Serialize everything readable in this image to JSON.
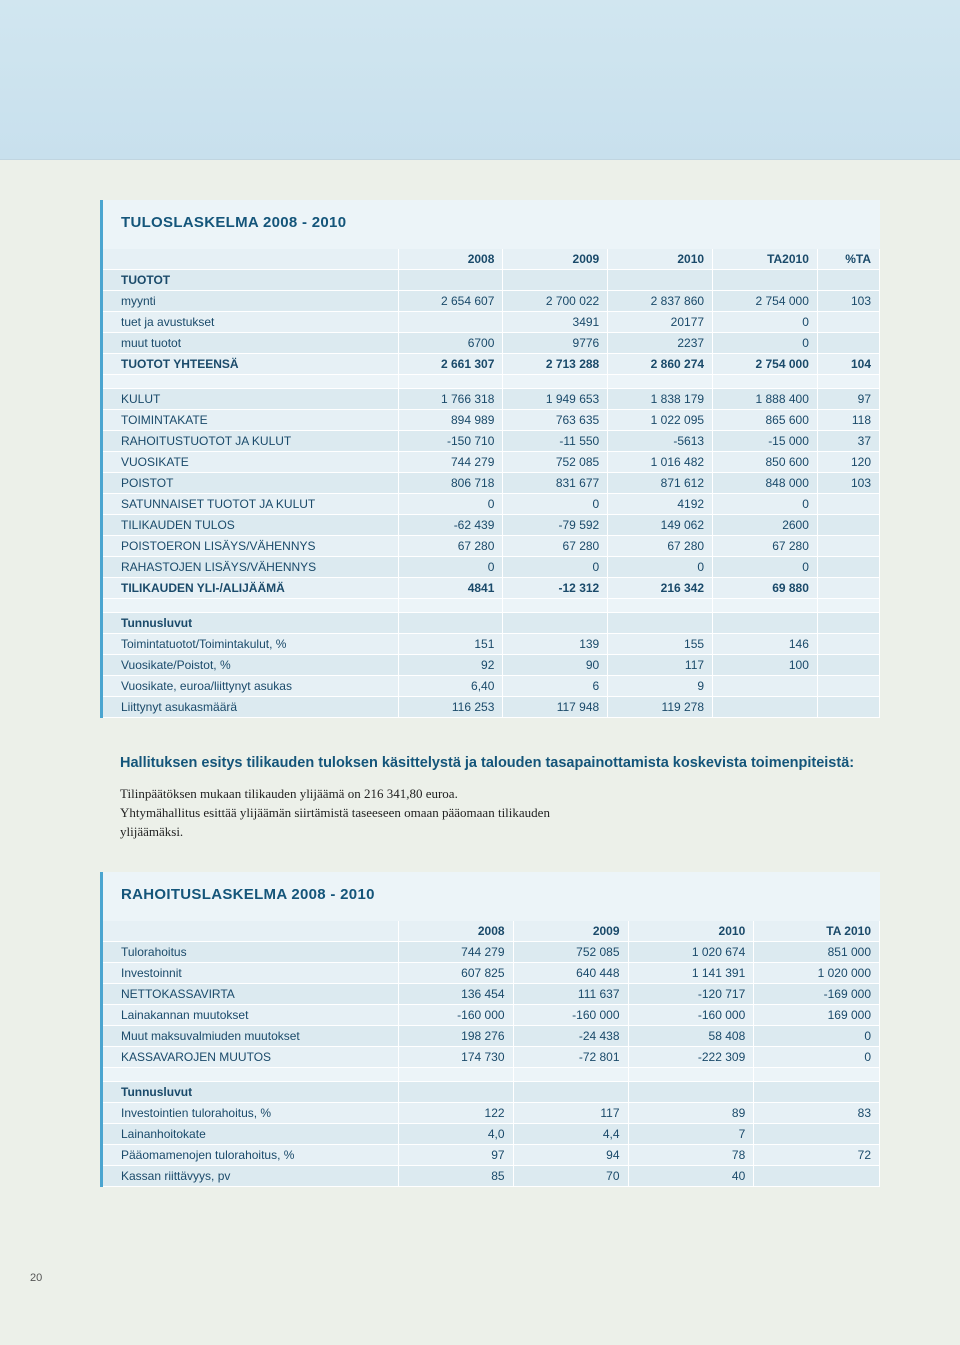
{
  "page_number": "20",
  "table1": {
    "title": "TULOSLASKELMA 2008 - 2010",
    "columns": [
      "",
      "2008",
      "2009",
      "2010",
      "TA2010",
      "%TA"
    ],
    "rows": [
      {
        "type": "section",
        "cells": [
          "TUOTOT",
          "",
          "",
          "",
          "",
          ""
        ]
      },
      {
        "type": "a",
        "cells": [
          "myynti",
          "2 654 607",
          "2 700 022",
          "2 837 860",
          "2 754 000",
          "103"
        ]
      },
      {
        "type": "b",
        "cells": [
          "tuet ja avustukset",
          "",
          "3491",
          "20177",
          "0",
          ""
        ]
      },
      {
        "type": "a",
        "cells": [
          "muut tuotot",
          "6700",
          "9776",
          "2237",
          "0",
          ""
        ]
      },
      {
        "type": "b bold",
        "cells": [
          "TUOTOT YHTEENSÄ",
          "2 661 307",
          "2 713 288",
          "2 860 274",
          "2 754 000",
          "104"
        ]
      },
      {
        "type": "blank",
        "cells": [
          "",
          "",
          "",
          "",
          "",
          ""
        ]
      },
      {
        "type": "a",
        "cells": [
          "KULUT",
          "1 766 318",
          "1 949 653",
          "1 838 179",
          "1 888 400",
          "97"
        ]
      },
      {
        "type": "b",
        "cells": [
          "TOIMINTAKATE",
          "894 989",
          "763 635",
          "1 022 095",
          "865 600",
          "118"
        ]
      },
      {
        "type": "a",
        "cells": [
          "RAHOITUSTUOTOT JA KULUT",
          "-150 710",
          "-11 550",
          "-5613",
          "-15 000",
          "37"
        ]
      },
      {
        "type": "b",
        "cells": [
          "VUOSIKATE",
          "744 279",
          "752 085",
          "1 016 482",
          "850 600",
          "120"
        ]
      },
      {
        "type": "a",
        "cells": [
          "POISTOT",
          "806 718",
          "831 677",
          "871 612",
          "848 000",
          "103"
        ]
      },
      {
        "type": "b",
        "cells": [
          "SATUNNAISET TUOTOT JA KULUT",
          "0",
          "0",
          "4192",
          "0",
          ""
        ]
      },
      {
        "type": "a",
        "cells": [
          "TILIKAUDEN TULOS",
          "-62 439",
          "-79 592",
          "149 062",
          "2600",
          ""
        ]
      },
      {
        "type": "b",
        "cells": [
          "POISTOERON LISÄYS/VÄHENNYS",
          "67 280",
          "67 280",
          "67 280",
          "67 280",
          ""
        ]
      },
      {
        "type": "a",
        "cells": [
          "RAHASTOJEN LISÄYS/VÄHENNYS",
          "0",
          "0",
          "0",
          "0",
          ""
        ]
      },
      {
        "type": "b bold",
        "cells": [
          "TILIKAUDEN YLI-/ALIJÄÄMÄ",
          "4841",
          "-12 312",
          "216 342",
          "69 880",
          ""
        ]
      },
      {
        "type": "blank",
        "cells": [
          "",
          "",
          "",
          "",
          "",
          ""
        ]
      },
      {
        "type": "section",
        "cells": [
          "Tunnusluvut",
          "",
          "",
          "",
          "",
          ""
        ]
      },
      {
        "type": "b",
        "cells": [
          "Toimintatuotot/Toimintakulut, %",
          "151",
          "139",
          "155",
          "146",
          ""
        ]
      },
      {
        "type": "a",
        "cells": [
          "Vuosikate/Poistot, %",
          "92",
          "90",
          "117",
          "100",
          ""
        ]
      },
      {
        "type": "b",
        "cells": [
          "Vuosikate, euroa/liittynyt asukas",
          "6,40",
          "6",
          "9",
          "",
          ""
        ]
      },
      {
        "type": "a",
        "cells": [
          "Liittynyt asukasmäärä",
          "116 253",
          "117 948",
          "119 278",
          "",
          ""
        ]
      }
    ]
  },
  "prose": {
    "heading": "Hallituksen esitys tilikauden tuloksen käsittelystä ja talouden tasapainottamista koskevista toimenpiteistä:",
    "p1": "Tilinpäätöksen mukaan tilikauden ylijäämä on 216 341,80 euroa.",
    "p2": "Yhtymähallitus esittää ylijäämän siirtämistä taseeseen omaan pääomaan tilikauden ylijäämäksi."
  },
  "table2": {
    "title": "RAHOITUSLASKELMA 2008 - 2010",
    "columns": [
      "",
      "2008",
      "2009",
      "2010",
      "TA 2010"
    ],
    "rows": [
      {
        "type": "a",
        "cells": [
          "Tulorahoitus",
          "744 279",
          "752 085",
          "1 020 674",
          "851 000"
        ]
      },
      {
        "type": "b",
        "cells": [
          "Investoinnit",
          "607 825",
          "640 448",
          "1 141 391",
          "1 020 000"
        ]
      },
      {
        "type": "a",
        "cells": [
          "NETTOKASSAVIRTA",
          "136 454",
          "111 637",
          "-120 717",
          "-169 000"
        ]
      },
      {
        "type": "b",
        "cells": [
          "Lainakannan muutokset",
          "-160 000",
          "-160 000",
          "-160 000",
          "169 000"
        ]
      },
      {
        "type": "a",
        "cells": [
          "Muut maksuvalmiuden muutokset",
          "198 276",
          "-24 438",
          "58 408",
          "0"
        ]
      },
      {
        "type": "b",
        "cells": [
          "KASSAVAROJEN MUUTOS",
          "174 730",
          "-72 801",
          "-222 309",
          "0"
        ]
      },
      {
        "type": "blank",
        "cells": [
          "",
          "",
          "",
          "",
          ""
        ]
      },
      {
        "type": "section",
        "cells": [
          "Tunnusluvut",
          "",
          "",
          "",
          ""
        ]
      },
      {
        "type": "b",
        "cells": [
          "Investointien tulorahoitus, %",
          "122",
          "117",
          "89",
          "83"
        ]
      },
      {
        "type": "a",
        "cells": [
          "Lainanhoitokate",
          "4,0",
          "4,4",
          "7",
          ""
        ]
      },
      {
        "type": "b",
        "cells": [
          "Pääomamenojen tulorahoitus, %",
          "97",
          "94",
          "78",
          "72"
        ]
      },
      {
        "type": "a",
        "cells": [
          "Kassan riittävyys, pv",
          "85",
          "70",
          "40",
          ""
        ]
      }
    ]
  }
}
